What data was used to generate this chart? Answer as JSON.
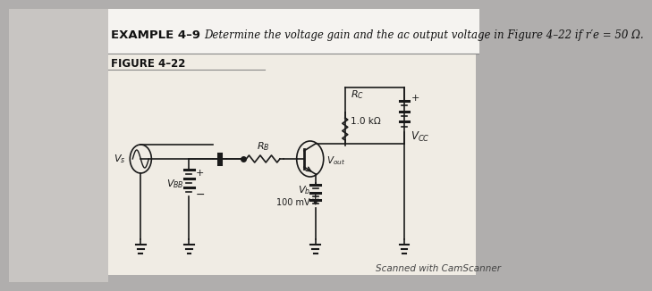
{
  "title_left": "EXAMPLE 4–9",
  "title_right": "Determine the voltage gain and the ac output voltage in Figure 4–22 if r′e = 50 Ω.",
  "figure_label": "FIGURE 4–22",
  "rc_value": "1.0 kΩ",
  "vb_value": "100 mV",
  "footer": "Scanned with CamScanner",
  "bg_outer": "#b0aead",
  "bg_panel": "#f0ece4",
  "bg_white": "#f5f3ef",
  "text_color": "#111111",
  "line_color": "#1a1a1a"
}
